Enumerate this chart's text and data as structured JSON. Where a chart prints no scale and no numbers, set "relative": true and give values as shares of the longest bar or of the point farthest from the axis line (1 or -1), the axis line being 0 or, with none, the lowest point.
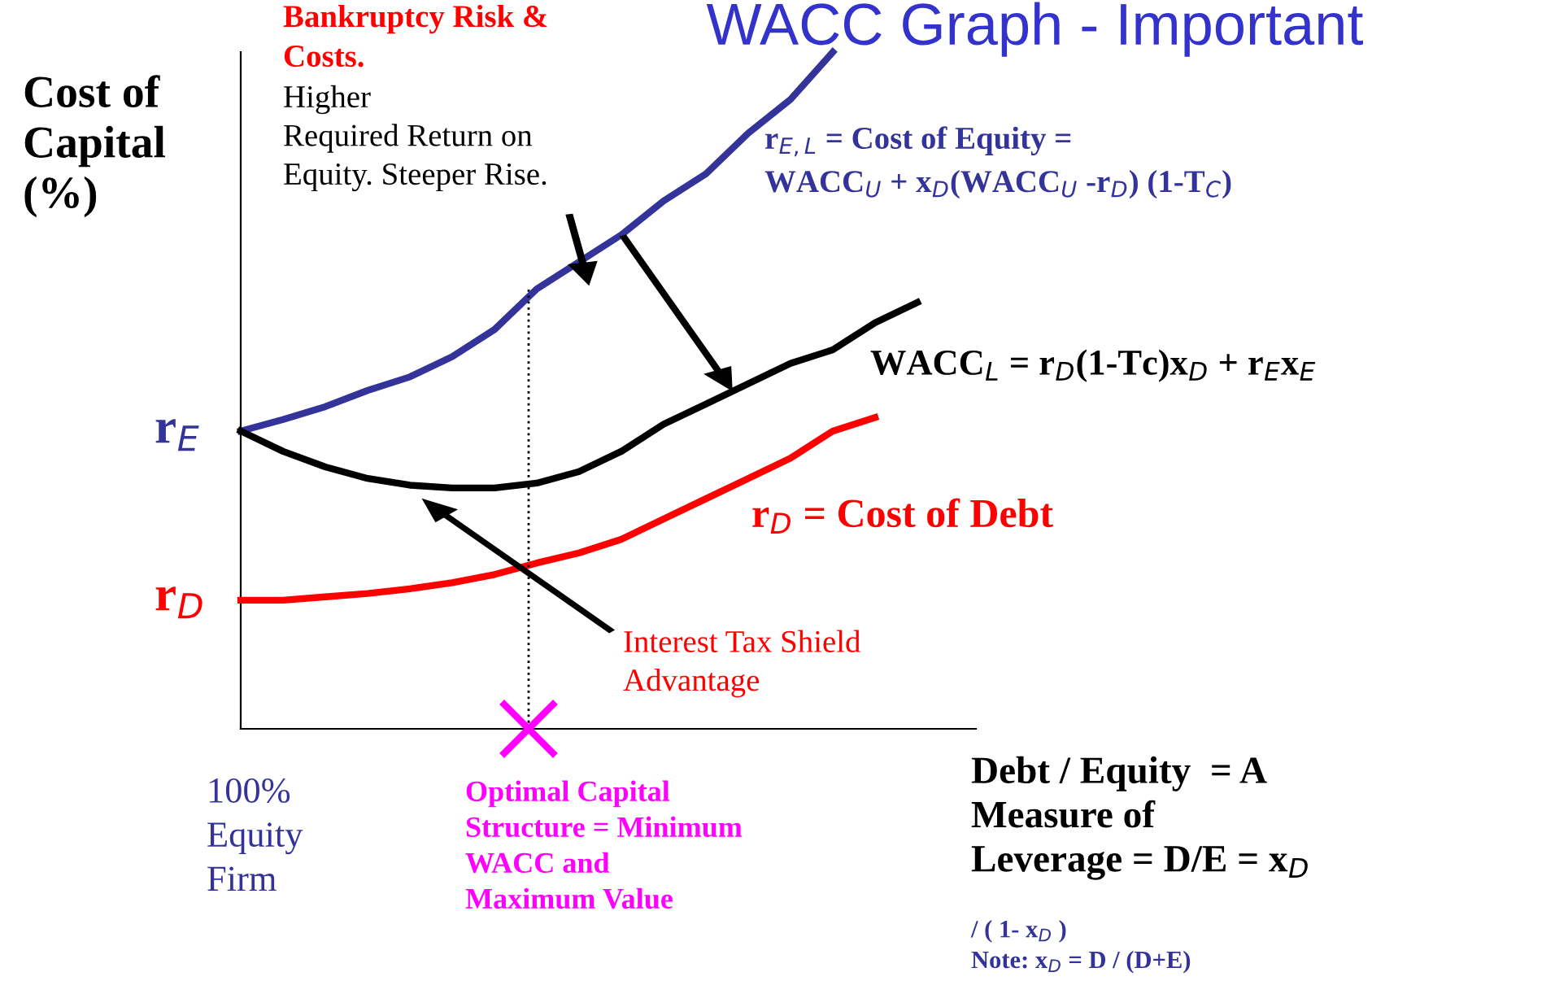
{
  "chart_data": {
    "type": "line",
    "relative": true,
    "title": "WACC Graph - Important",
    "ylabel": "Cost of\nCapital\n(%)",
    "xlabel": "Debt / Equity  = A\nMeasure of\nLeverage = D/E = x$_{D}$",
    "categories": [
      null,
      null,
      null,
      null,
      null,
      null,
      null,
      null,
      null,
      null,
      null,
      null,
      null,
      null,
      null,
      null,
      null
    ],
    "series": [
      {
        "name": "r$_{E,L}$ = Cost of Equity =\nWACC$_{U}$ + x$_{D}$(WACC$_{U}$ -r$_{D}$) (1-T$_{C}$)",
        "color": "#333399",
        "values": [
          0.44,
          0.457,
          0.476,
          0.5,
          0.52,
          0.55,
          0.59,
          0.65,
          0.69,
          0.73,
          0.78,
          0.82,
          0.88,
          0.93,
          1,
          null,
          null
        ]
      },
      {
        "name": "WACC$_{L}$ = r$_{D}$(1-Tc)x$_{D}$ + r$_{E}$x$_{E}$",
        "color": "#000000",
        "values": [
          0.44,
          0.41,
          0.387,
          0.37,
          0.36,
          0.356,
          0.356,
          0.363,
          0.38,
          0.41,
          0.45,
          0.48,
          0.51,
          0.54,
          0.56,
          0.6,
          0.63
        ]
      },
      {
        "name": "r$_{D}$ = Cost of Debt",
        "color": "#ff0000",
        "values": [
          0.19,
          0.19,
          0.195,
          0.2,
          0.207,
          0.216,
          0.228,
          0.245,
          0.26,
          0.28,
          0.31,
          0.34,
          0.37,
          0.4,
          0.44,
          0.46,
          null
        ]
      }
    ],
    "annotations": [
      "Bankruptcy Risk &\nCosts.",
      "Higher\nRequired Return on\nEquity. Steeper Rise.",
      "r$_{E}$",
      "r$_{D}$",
      "Interest Tax Shield\nAdvantage",
      "100%\nEquity\nFirm",
      "Optimal Capital\nStructure = Minimum\nWACC and\nMaximum Value",
      "/ ( 1- x$_{D}$ )\nNote: x$_{D}$ = D / (D+E)"
    ]
  }
}
